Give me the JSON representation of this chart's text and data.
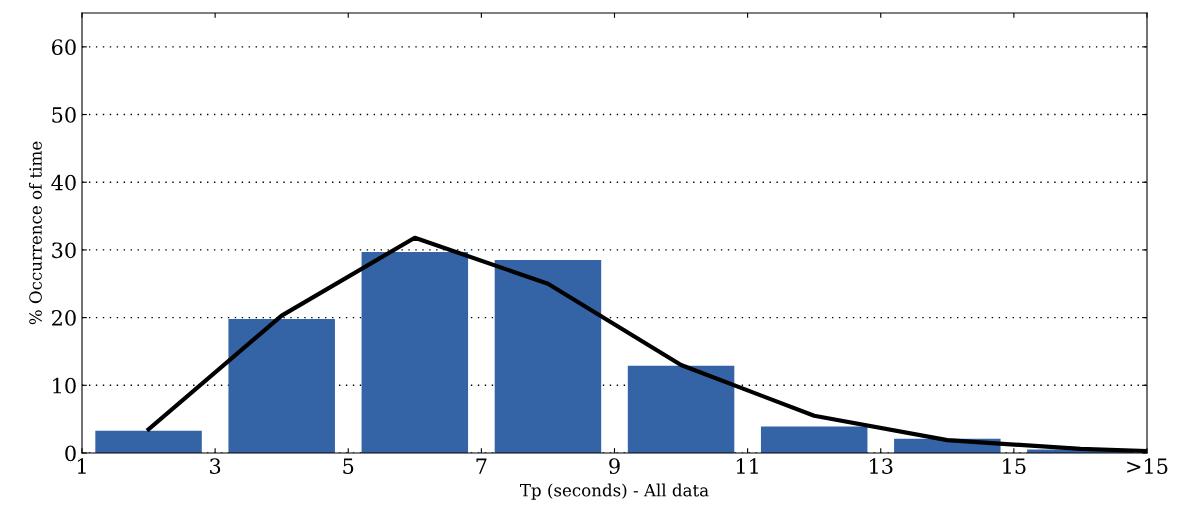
{
  "chart_data": {
    "type": "bar",
    "xlabel": "Tp (seconds) - All data",
    "ylabel": "% Occurrence of time",
    "series": [
      {
        "color": "#3464a6",
        "x": [
          2,
          4,
          6,
          8,
          10,
          12,
          14,
          16
        ],
        "values": [
          3.3,
          19.8,
          29.7,
          28.5,
          12.9,
          3.9,
          2.1,
          0.5
        ]
      },
      {
        "type": "line",
        "color": "#000000",
        "x": [
          2,
          4,
          6,
          8,
          10,
          12,
          14,
          16,
          17
        ],
        "values": [
          3.5,
          20.3,
          31.8,
          25,
          13,
          5.5,
          1.9,
          0.6,
          0.3
        ]
      }
    ],
    "xlim": [
      1,
      17
    ],
    "xticks": [
      1,
      3,
      5,
      7,
      9,
      11,
      13,
      15,
      {
        "value": 17,
        "label": ">15"
      }
    ],
    "ylim": [
      0,
      65
    ],
    "yticks": [
      0,
      10,
      20,
      30,
      40,
      50,
      60
    ],
    "grid": "y",
    "marker": "none",
    "line_style": "solid"
  }
}
